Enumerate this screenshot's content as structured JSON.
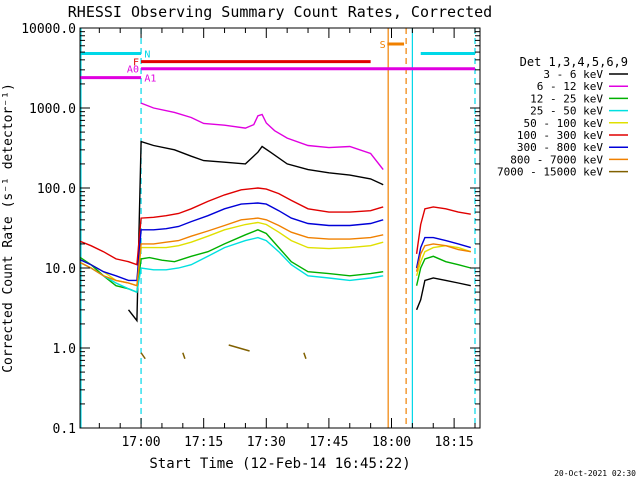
{
  "chart_data": {
    "type": "line",
    "title": "RHESSI Observing Summary Count Rates, Corrected",
    "xlabel": "Start Time (12-Feb-14 16:45:22)",
    "ylabel": "Corrected Count Rate (s⁻¹ detector⁻¹)",
    "yscale": "log",
    "ylim": [
      0.1,
      10000
    ],
    "xlim_minutes": [
      -14.63,
      81.2
    ],
    "grid": false,
    "legend_position": "right",
    "legend_title": "Det 1,3,4,5,6,9",
    "x_ticks": [
      {
        "t": 0,
        "label": "17:00"
      },
      {
        "t": 15,
        "label": "17:15"
      },
      {
        "t": 30,
        "label": "17:30"
      },
      {
        "t": 45,
        "label": "17:45"
      },
      {
        "t": 60,
        "label": "18:00"
      },
      {
        "t": 75,
        "label": "18:15"
      }
    ],
    "y_ticks": [
      {
        "v": 10000,
        "label": "10000.0"
      },
      {
        "v": 1000,
        "label": "1000.0"
      },
      {
        "v": 100,
        "label": "100.0"
      },
      {
        "v": 10,
        "label": "10.0"
      },
      {
        "v": 1,
        "label": "1.0"
      },
      {
        "v": 0.1,
        "label": "0.1"
      }
    ],
    "series": [
      {
        "name": "3 - 6 keV",
        "color": "#000000",
        "points": [
          [
            -3,
            3
          ],
          [
            -1,
            2.2
          ],
          [
            0,
            380
          ],
          [
            3,
            340
          ],
          [
            8,
            300
          ],
          [
            12,
            250
          ],
          [
            15,
            220
          ],
          [
            20,
            210
          ],
          [
            25,
            200
          ],
          [
            28,
            280
          ],
          [
            29,
            330
          ],
          [
            31,
            280
          ],
          [
            35,
            200
          ],
          [
            40,
            170
          ],
          [
            45,
            155
          ],
          [
            50,
            145
          ],
          [
            55,
            130
          ],
          [
            58,
            110
          ],
          [
            66,
            3
          ],
          [
            67,
            4
          ],
          [
            68,
            7
          ],
          [
            70,
            7.5
          ],
          [
            73,
            7
          ],
          [
            76,
            6.5
          ],
          [
            79,
            6
          ]
        ]
      },
      {
        "name": "6 - 12 keV",
        "color": "#e000e0",
        "points": [
          [
            0,
            1150
          ],
          [
            3,
            1000
          ],
          [
            8,
            880
          ],
          [
            12,
            760
          ],
          [
            15,
            640
          ],
          [
            20,
            610
          ],
          [
            25,
            560
          ],
          [
            27,
            620
          ],
          [
            28,
            800
          ],
          [
            29,
            830
          ],
          [
            30,
            650
          ],
          [
            32,
            520
          ],
          [
            35,
            420
          ],
          [
            40,
            340
          ],
          [
            45,
            320
          ],
          [
            50,
            330
          ],
          [
            55,
            270
          ],
          [
            58,
            170
          ]
        ]
      },
      {
        "name": "12 - 25 keV",
        "color": "#00b000",
        "points": [
          [
            -15,
            14
          ],
          [
            -12,
            11
          ],
          [
            -9,
            8
          ],
          [
            -6,
            6
          ],
          [
            -3,
            5.5
          ],
          [
            -1,
            5
          ],
          [
            0,
            13
          ],
          [
            2,
            13.5
          ],
          [
            5,
            12.5
          ],
          [
            8,
            12
          ],
          [
            12,
            14
          ],
          [
            16,
            16
          ],
          [
            20,
            20
          ],
          [
            25,
            26
          ],
          [
            28,
            30
          ],
          [
            30,
            27
          ],
          [
            33,
            18
          ],
          [
            36,
            12
          ],
          [
            40,
            9
          ],
          [
            45,
            8.5
          ],
          [
            50,
            8
          ],
          [
            55,
            8.5
          ],
          [
            58,
            9
          ],
          [
            66,
            6
          ],
          [
            67,
            10
          ],
          [
            68,
            13
          ],
          [
            70,
            14
          ],
          [
            73,
            12
          ],
          [
            76,
            11
          ],
          [
            79,
            10
          ]
        ]
      },
      {
        "name": "25 - 50 keV",
        "color": "#00e0e0",
        "points": [
          [
            -15,
            12
          ],
          [
            -12,
            10
          ],
          [
            -9,
            8
          ],
          [
            -6,
            6.5
          ],
          [
            -3,
            5.5
          ],
          [
            -1,
            5
          ],
          [
            0,
            10
          ],
          [
            3,
            9.5
          ],
          [
            6,
            9.5
          ],
          [
            9,
            10
          ],
          [
            12,
            11
          ],
          [
            16,
            14
          ],
          [
            20,
            18
          ],
          [
            25,
            22
          ],
          [
            28,
            24
          ],
          [
            30,
            22
          ],
          [
            33,
            16
          ],
          [
            36,
            11
          ],
          [
            40,
            8
          ],
          [
            45,
            7.5
          ],
          [
            50,
            7
          ],
          [
            55,
            7.5
          ],
          [
            58,
            8
          ]
        ]
      },
      {
        "name": "50 - 100 keV",
        "color": "#e0e000",
        "points": [
          [
            -15,
            13
          ],
          [
            -12,
            11
          ],
          [
            -9,
            9
          ],
          [
            -6,
            7
          ],
          [
            -3,
            6.5
          ],
          [
            -1,
            6
          ],
          [
            0,
            18
          ],
          [
            3,
            18
          ],
          [
            6,
            18
          ],
          [
            9,
            19
          ],
          [
            12,
            21
          ],
          [
            16,
            25
          ],
          [
            20,
            30
          ],
          [
            25,
            35
          ],
          [
            28,
            37
          ],
          [
            30,
            35
          ],
          [
            33,
            28
          ],
          [
            36,
            22
          ],
          [
            40,
            18
          ],
          [
            45,
            17.5
          ],
          [
            50,
            18
          ],
          [
            55,
            19
          ],
          [
            58,
            21
          ],
          [
            66,
            8
          ],
          [
            67,
            12
          ],
          [
            68,
            16
          ],
          [
            70,
            18
          ],
          [
            73,
            19
          ],
          [
            76,
            18
          ],
          [
            79,
            16
          ]
        ]
      },
      {
        "name": "100 - 300 keV",
        "color": "#e00000",
        "points": [
          [
            -15,
            22
          ],
          [
            -12,
            19
          ],
          [
            -9,
            16
          ],
          [
            -6,
            13
          ],
          [
            -3,
            12
          ],
          [
            -1,
            11
          ],
          [
            0,
            42
          ],
          [
            3,
            43
          ],
          [
            6,
            45
          ],
          [
            9,
            48
          ],
          [
            12,
            55
          ],
          [
            16,
            68
          ],
          [
            20,
            82
          ],
          [
            24,
            95
          ],
          [
            28,
            100
          ],
          [
            30,
            97
          ],
          [
            33,
            85
          ],
          [
            36,
            70
          ],
          [
            40,
            55
          ],
          [
            45,
            50
          ],
          [
            50,
            50
          ],
          [
            55,
            52
          ],
          [
            58,
            58
          ],
          [
            66,
            15
          ],
          [
            67,
            35
          ],
          [
            68,
            55
          ],
          [
            70,
            58
          ],
          [
            73,
            55
          ],
          [
            76,
            50
          ],
          [
            79,
            47
          ]
        ]
      },
      {
        "name": "300 - 800 keV",
        "color": "#0000d8",
        "points": [
          [
            -15,
            13
          ],
          [
            -12,
            11
          ],
          [
            -9,
            9
          ],
          [
            -6,
            8
          ],
          [
            -3,
            7
          ],
          [
            -1,
            7
          ],
          [
            0,
            30
          ],
          [
            3,
            30
          ],
          [
            6,
            31
          ],
          [
            9,
            33
          ],
          [
            12,
            38
          ],
          [
            16,
            45
          ],
          [
            20,
            55
          ],
          [
            24,
            63
          ],
          [
            28,
            65
          ],
          [
            30,
            63
          ],
          [
            33,
            52
          ],
          [
            36,
            42
          ],
          [
            40,
            36
          ],
          [
            45,
            34
          ],
          [
            50,
            34
          ],
          [
            55,
            36
          ],
          [
            58,
            40
          ],
          [
            66,
            10
          ],
          [
            67,
            18
          ],
          [
            68,
            24
          ],
          [
            70,
            24
          ],
          [
            73,
            22
          ],
          [
            76,
            20
          ],
          [
            79,
            18
          ]
        ]
      },
      {
        "name": "800 - 7000 keV",
        "color": "#f08000",
        "points": [
          [
            -15,
            12
          ],
          [
            -12,
            10
          ],
          [
            -9,
            8
          ],
          [
            -6,
            7
          ],
          [
            -3,
            6.5
          ],
          [
            -1,
            6
          ],
          [
            0,
            20
          ],
          [
            3,
            20
          ],
          [
            6,
            21
          ],
          [
            9,
            22
          ],
          [
            12,
            25
          ],
          [
            16,
            29
          ],
          [
            20,
            34
          ],
          [
            24,
            40
          ],
          [
            28,
            42
          ],
          [
            30,
            40
          ],
          [
            33,
            34
          ],
          [
            36,
            28
          ],
          [
            40,
            24
          ],
          [
            45,
            23
          ],
          [
            50,
            23
          ],
          [
            55,
            24
          ],
          [
            58,
            26
          ],
          [
            66,
            9
          ],
          [
            67,
            15
          ],
          [
            68,
            19
          ],
          [
            70,
            20
          ],
          [
            73,
            19
          ],
          [
            76,
            17
          ],
          [
            79,
            16
          ]
        ]
      },
      {
        "name": "7000 - 15000 keV",
        "color": "#806000",
        "points": [
          [
            0,
            0.8
          ],
          [
            1,
            0.8
          ],
          [
            10,
            0.8
          ],
          [
            10.5,
            0.8
          ],
          [
            21,
            1.0
          ],
          [
            26,
            1.0
          ],
          [
            39,
            0.8
          ],
          [
            39.5,
            0.8
          ]
        ]
      }
    ],
    "annotations": [
      {
        "label": "N",
        "color": "#00d8e8"
      },
      {
        "label": "F",
        "color": "#e00000"
      },
      {
        "label": "A0",
        "color": "#e000e0"
      },
      {
        "label": "A1",
        "color": "#e000e0"
      },
      {
        "label": "S",
        "color": "#f08000"
      }
    ],
    "status_bars": [
      {
        "label": "N",
        "color": "#00d8e8",
        "level": 4800,
        "t0": -15,
        "t1": 0
      },
      {
        "label": "N",
        "color": "#00d8e8",
        "level": 4800,
        "t0": 67,
        "t1": 80
      },
      {
        "label": "F",
        "color": "#e00000",
        "level": 3800,
        "t0": 0,
        "t1": 55
      },
      {
        "label": "A0",
        "color": "#e000e0",
        "level": 3100,
        "t0": 0,
        "t1": 80
      },
      {
        "label": "A1",
        "color": "#e000e0",
        "level": 2400,
        "t0": -15,
        "t1": 0
      },
      {
        "label": "S",
        "color": "#f08000",
        "level": 6300,
        "t0": 59,
        "t1": 63
      }
    ],
    "vertical_markers": [
      {
        "t": -14.4,
        "color": "#00d8e8",
        "style": "solid"
      },
      {
        "t": 0,
        "color": "#00d8e8",
        "style": "dashed"
      },
      {
        "t": 59.2,
        "color": "#f08000",
        "style": "solid"
      },
      {
        "t": 63.5,
        "color": "#f08000",
        "style": "dashed"
      },
      {
        "t": 65,
        "color": "#00d8e8",
        "style": "solid"
      },
      {
        "t": 80,
        "color": "#00d8e8",
        "style": "dashed"
      }
    ]
  },
  "footer": {
    "timestamp": "20-Oct-2021 02:30"
  }
}
